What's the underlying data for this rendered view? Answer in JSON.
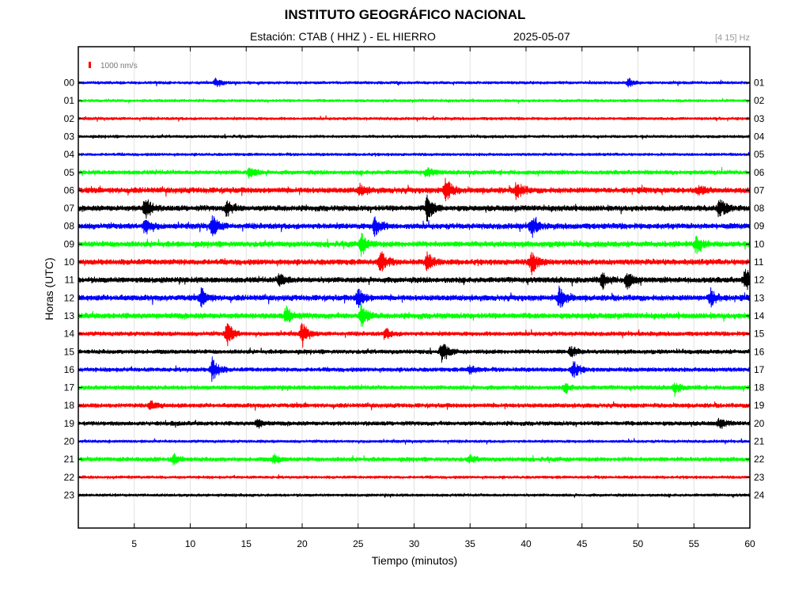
{
  "chart_data": {
    "type": "line",
    "title": "INSTITUTO GEOGRÁFICO NACIONAL",
    "station": "Estación:  CTAB ( HHZ ) - EL HIERRO",
    "date": "2025-05-07",
    "filter": "[4 15] Hz",
    "scale_label": "1000 nm/s",
    "xlabel": "Tiempo (minutos)",
    "ylabel": "Horas (UTC)",
    "xlim": [
      0,
      60
    ],
    "x_ticks": [
      5,
      10,
      15,
      20,
      25,
      30,
      35,
      40,
      45,
      50,
      55,
      60
    ],
    "left_labels": [
      "00",
      "01",
      "02",
      "03",
      "04",
      "05",
      "06",
      "07",
      "08",
      "09",
      "10",
      "11",
      "12",
      "13",
      "14",
      "15",
      "16",
      "17",
      "18",
      "19",
      "20",
      "21",
      "22",
      "23"
    ],
    "right_labels": [
      "01",
      "02",
      "03",
      "04",
      "05",
      "06",
      "07",
      "08",
      "09",
      "10",
      "11",
      "12",
      "13",
      "14",
      "15",
      "16",
      "17",
      "18",
      "19",
      "20",
      "21",
      "22",
      "23",
      "24"
    ],
    "trace_colors": [
      "#0000ff",
      "#00ff00",
      "#ff0000",
      "#000000"
    ],
    "scale_color": "#ff0000",
    "grid": true,
    "noise_levels": [
      2,
      2,
      2,
      2,
      2,
      3,
      4,
      4,
      4,
      4,
      4,
      4,
      4,
      4,
      3,
      3,
      3,
      3,
      3,
      3,
      2,
      3,
      2,
      2
    ],
    "events": [
      {
        "hour": 0,
        "minute": 12.3,
        "amplitude": 6
      },
      {
        "hour": 0,
        "minute": 49.2,
        "amplitude": 5
      },
      {
        "hour": 5,
        "minute": 15.3,
        "amplitude": 6
      },
      {
        "hour": 5,
        "minute": 31.2,
        "amplitude": 5
      },
      {
        "hour": 6,
        "minute": 25.2,
        "amplitude": 6
      },
      {
        "hour": 6,
        "minute": 32.8,
        "amplitude": 16
      },
      {
        "hour": 6,
        "minute": 39.2,
        "amplitude": 11
      },
      {
        "hour": 6,
        "minute": 55.5,
        "amplitude": 6
      },
      {
        "hour": 7,
        "minute": 6.0,
        "amplitude": 14
      },
      {
        "hour": 7,
        "minute": 13.3,
        "amplitude": 10
      },
      {
        "hour": 7,
        "minute": 31.2,
        "amplitude": 16
      },
      {
        "hour": 7,
        "minute": 57.3,
        "amplitude": 13
      },
      {
        "hour": 8,
        "minute": 6.0,
        "amplitude": 10
      },
      {
        "hour": 8,
        "minute": 12.0,
        "amplitude": 13
      },
      {
        "hour": 8,
        "minute": 26.5,
        "amplitude": 12
      },
      {
        "hour": 8,
        "minute": 40.5,
        "amplitude": 13
      },
      {
        "hour": 9,
        "minute": 25.3,
        "amplitude": 13
      },
      {
        "hour": 9,
        "minute": 55.2,
        "amplitude": 11
      },
      {
        "hour": 10,
        "minute": 27.0,
        "amplitude": 14
      },
      {
        "hour": 10,
        "minute": 31.2,
        "amplitude": 11
      },
      {
        "hour": 10,
        "minute": 40.5,
        "amplitude": 15
      },
      {
        "hour": 11,
        "minute": 18.0,
        "amplitude": 8
      },
      {
        "hour": 11,
        "minute": 46.8,
        "amplitude": 10
      },
      {
        "hour": 11,
        "minute": 49.0,
        "amplitude": 11
      },
      {
        "hour": 11,
        "minute": 59.6,
        "amplitude": 14
      },
      {
        "hour": 12,
        "minute": 11.0,
        "amplitude": 10
      },
      {
        "hour": 12,
        "minute": 25.0,
        "amplitude": 12
      },
      {
        "hour": 12,
        "minute": 43.0,
        "amplitude": 13
      },
      {
        "hour": 12,
        "minute": 56.5,
        "amplitude": 11
      },
      {
        "hour": 13,
        "minute": 18.6,
        "amplitude": 11
      },
      {
        "hour": 13,
        "minute": 25.3,
        "amplitude": 14
      },
      {
        "hour": 14,
        "minute": 13.3,
        "amplitude": 15
      },
      {
        "hour": 14,
        "minute": 20.0,
        "amplitude": 13
      },
      {
        "hour": 14,
        "minute": 27.5,
        "amplitude": 6
      },
      {
        "hour": 15,
        "minute": 32.5,
        "amplitude": 12
      },
      {
        "hour": 15,
        "minute": 44.0,
        "amplitude": 7
      },
      {
        "hour": 16,
        "minute": 12.0,
        "amplitude": 16
      },
      {
        "hour": 16,
        "minute": 44.2,
        "amplitude": 11
      },
      {
        "hour": 16,
        "minute": 35.0,
        "amplitude": 5
      },
      {
        "hour": 17,
        "minute": 53.3,
        "amplitude": 6
      },
      {
        "hour": 17,
        "minute": 43.5,
        "amplitude": 5
      },
      {
        "hour": 18,
        "minute": 6.5,
        "amplitude": 5
      },
      {
        "hour": 19,
        "minute": 57.3,
        "amplitude": 6
      },
      {
        "hour": 19,
        "minute": 16.0,
        "amplitude": 5
      },
      {
        "hour": 21,
        "minute": 8.5,
        "amplitude": 6
      },
      {
        "hour": 21,
        "minute": 17.5,
        "amplitude": 5
      },
      {
        "hour": 21,
        "minute": 35.0,
        "amplitude": 4
      }
    ]
  }
}
